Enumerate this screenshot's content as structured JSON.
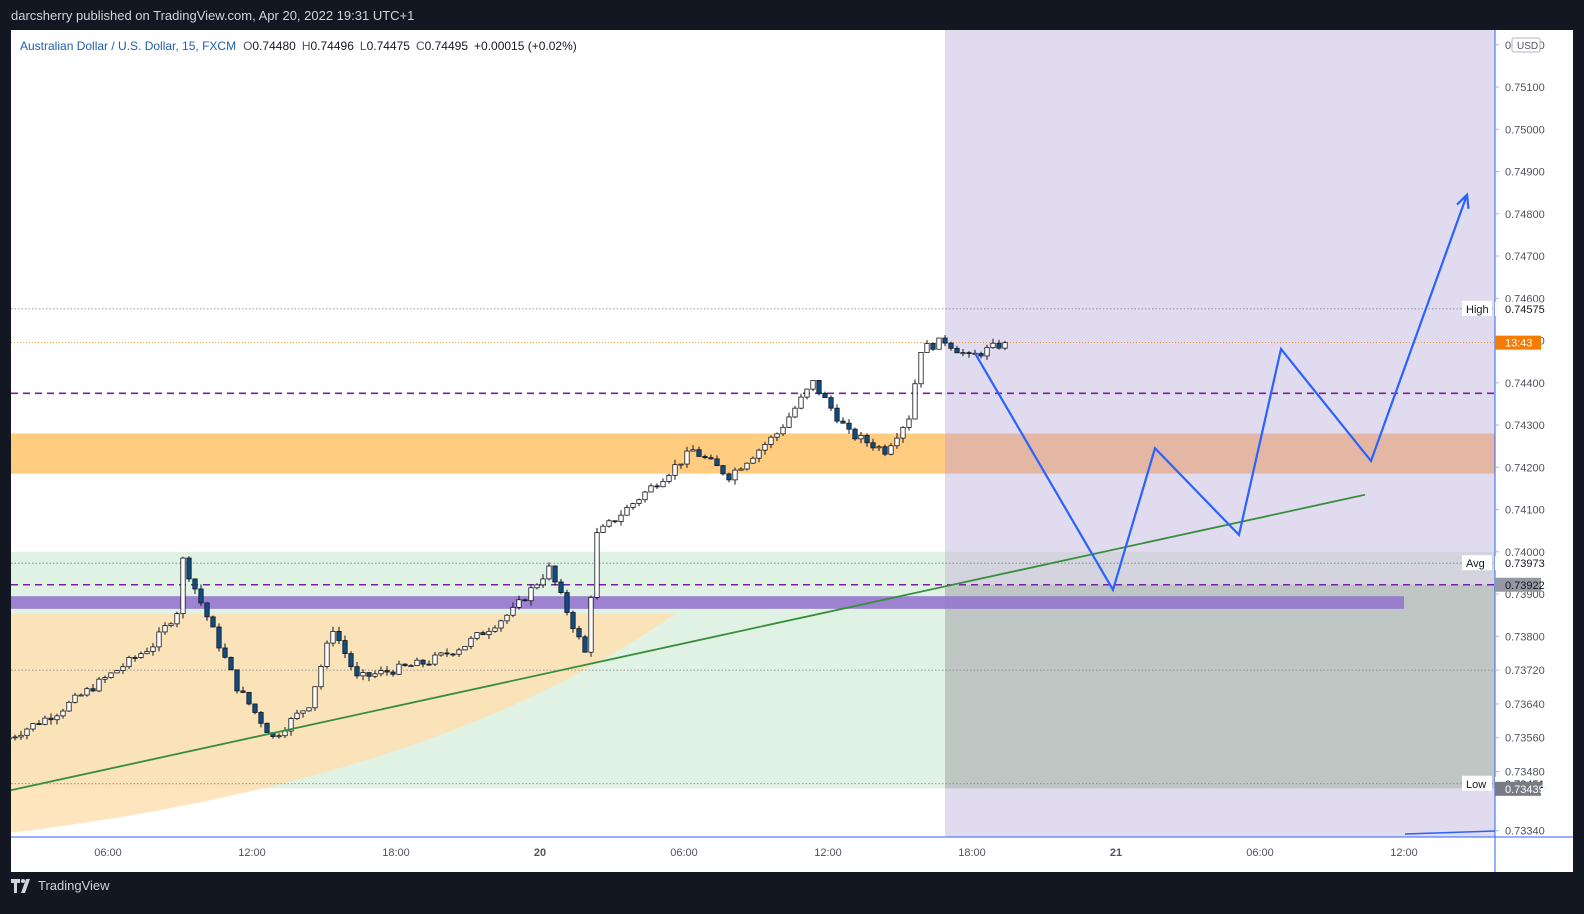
{
  "header": {
    "published": "darcsherry published on TradingView.com, Apr 20, 2022 19:31 UTC+1"
  },
  "footer": {
    "brand": "TradingView"
  },
  "legend": {
    "symbol": "Australian Dollar / U.S. Dollar, 15, FXCM",
    "o_label": "O",
    "o": "0.74480",
    "h_label": "H",
    "h": "0.74496",
    "l_label": "L",
    "l": "0.74475",
    "c_label": "C",
    "c": "0.74495",
    "change": "+0.00015 (+0.02%)"
  },
  "colors": {
    "background": "#131722",
    "plot_bg": "#ffffff",
    "up_candle": "#ffffff",
    "down_candle": "#0f4c81",
    "wick": "#131722",
    "projection": "#2962ff",
    "trendline": "#388e3c",
    "dashed_level": "#7b1fa2",
    "orange_zone": "#ffcc80",
    "purple_band": "#9575cd",
    "price_label": "#f57c00"
  },
  "chart_data": {
    "type": "candlestick",
    "currency": "USD",
    "ylim": [
      0.73325,
      0.75235
    ],
    "y_ticks": [
      "0.75200",
      "0.75100",
      "0.75000",
      "0.74900",
      "0.74800",
      "0.74700",
      "0.74600",
      "0.74500",
      "0.74400",
      "0.74300",
      "0.74200",
      "0.74100",
      "0.74000",
      "0.73900",
      "0.73800",
      "0.73720",
      "0.73640",
      "0.73560",
      "0.73480",
      "0.73340"
    ],
    "x_ticks": [
      {
        "label": "06:00",
        "t": 16.5
      },
      {
        "label": "12:00",
        "t": 40.5
      },
      {
        "label": "18:00",
        "t": 64.5
      },
      {
        "label": "20",
        "t": 88.5
      },
      {
        "label": "06:00",
        "t": 112.5
      },
      {
        "label": "12:00",
        "t": 136.5
      },
      {
        "label": "18:00",
        "t": 160.5
      },
      {
        "label": "21",
        "t": 184.5
      },
      {
        "label": "06:00",
        "t": 208.5
      },
      {
        "label": "12:00",
        "t": 232.5
      }
    ],
    "candles": [],
    "levels": {
      "high": {
        "label": "High",
        "value": "0.74575",
        "y": 0.74575
      },
      "avg": {
        "label": "Avg",
        "value": "0.73973",
        "y": 0.73973
      },
      "low": {
        "label": "Low",
        "value": "0.73451",
        "y": 0.73451
      },
      "current": {
        "value": "13:43",
        "y": 0.74495
      },
      "dashed_upper": 0.74375,
      "dashed_lower": {
        "value": "0.73922",
        "y": 0.73922
      },
      "low_marker": {
        "value": "0.73439",
        "y": 0.73439
      },
      "dotted_mid": 0.7372
    },
    "zones": {
      "orange_band": [
        0.74185,
        0.7428
      ],
      "purple_band": [
        0.73865,
        0.73895
      ],
      "purple_box_from_t": 156,
      "green_box": [
        0.7344,
        0.74
      ],
      "gray_box": [
        0.7344,
        0.73922
      ]
    },
    "trendline": [
      {
        "t": 0,
        "y": 0.7347
      },
      {
        "t": 226,
        "y": 0.74135
      }
    ],
    "projection": [
      {
        "t": 161,
        "y": 0.7447
      },
      {
        "t": 184,
        "y": 0.7391
      },
      {
        "t": 191,
        "y": 0.74245
      },
      {
        "t": 205,
        "y": 0.7404
      },
      {
        "t": 212,
        "y": 0.7448
      },
      {
        "t": 227,
        "y": 0.74215
      },
      {
        "t": 243,
        "y": 0.74845
      }
    ]
  }
}
